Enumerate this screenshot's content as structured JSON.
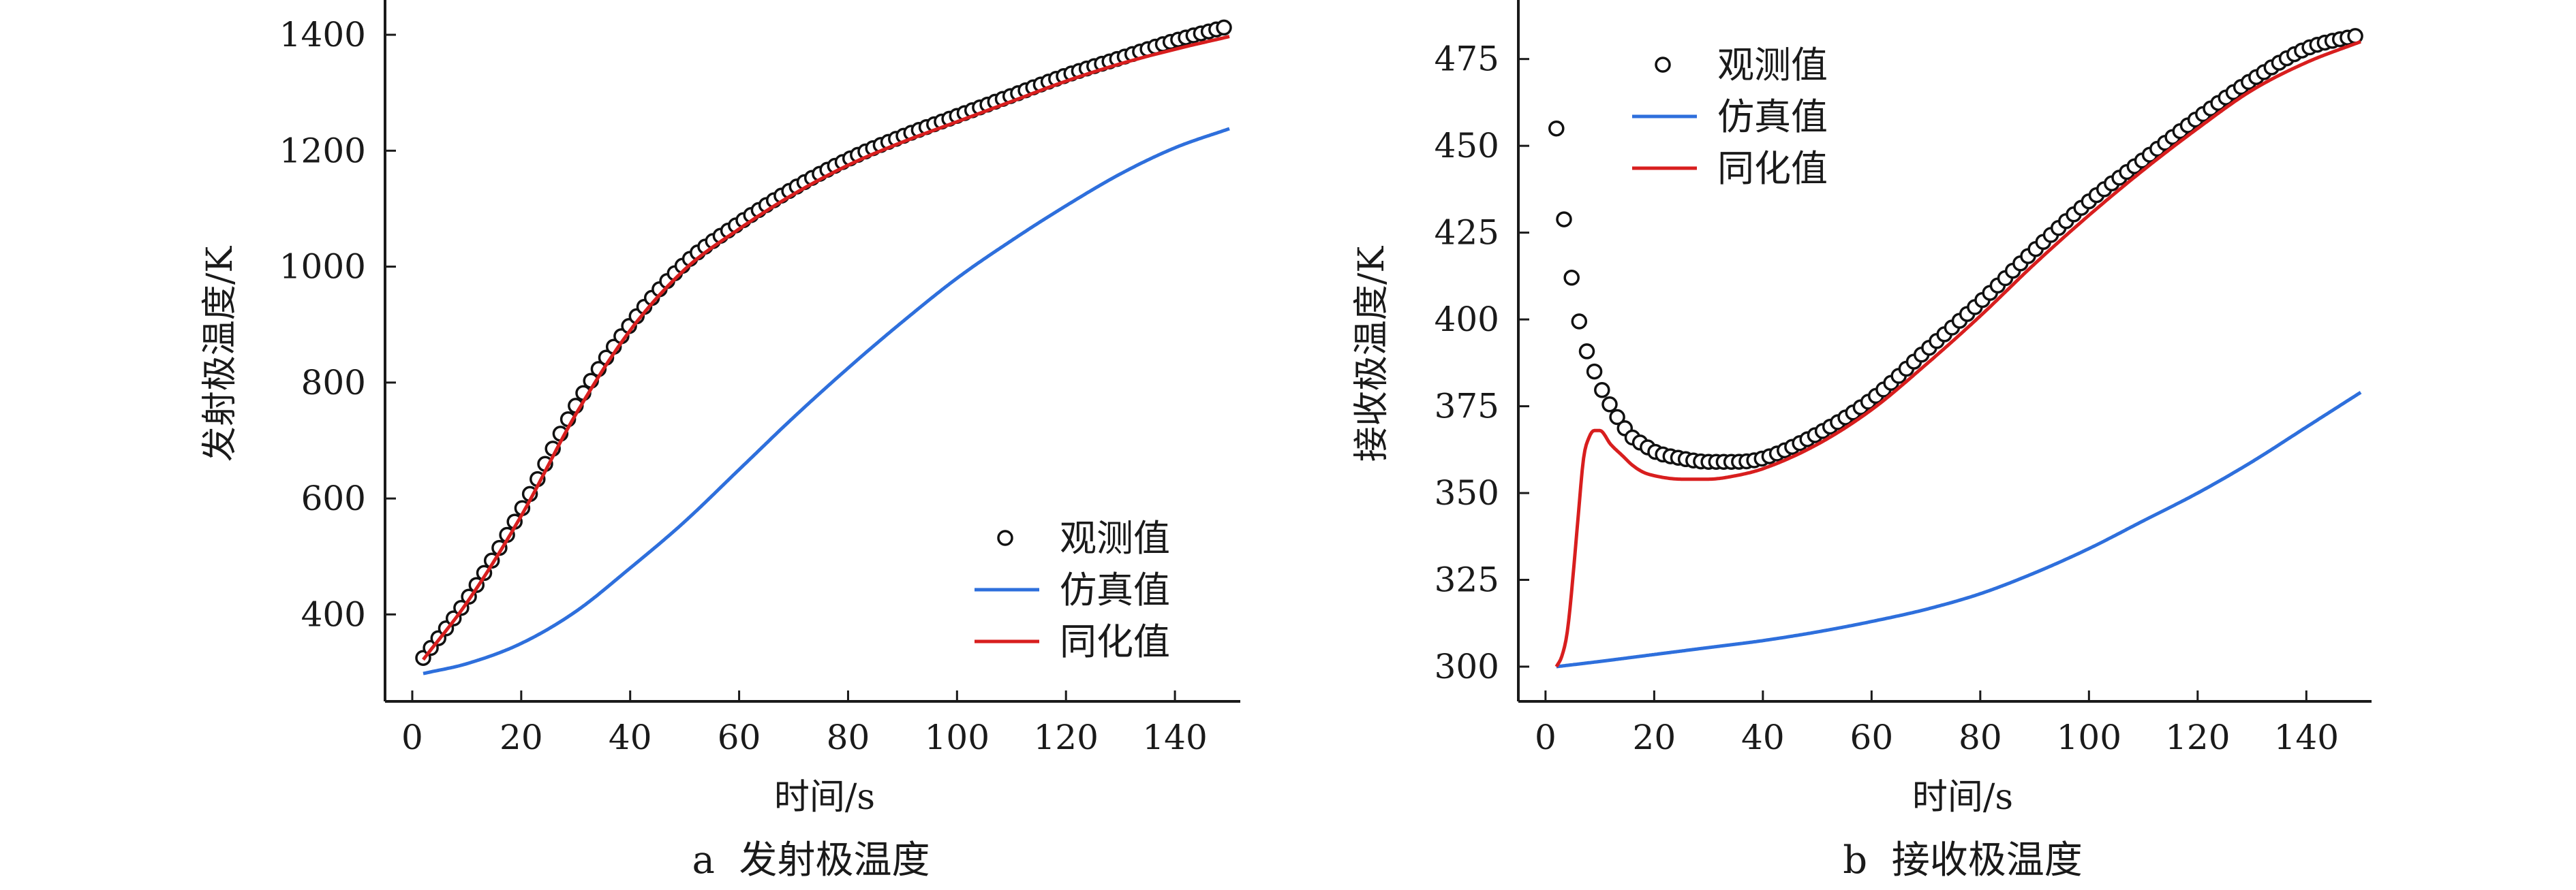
{
  "chart_data": [
    {
      "id": "a",
      "type": "line",
      "caption": "a  发射极温度",
      "xlabel": "时间/s",
      "ylabel": "发射极温度/K",
      "xlim": [
        -5,
        152
      ],
      "ylim": [
        250,
        1460
      ],
      "xticks": [
        0,
        20,
        40,
        60,
        80,
        100,
        120,
        140
      ],
      "yticks": [
        400,
        600,
        800,
        1000,
        1200,
        1400
      ],
      "grid": false,
      "legend_position": "bottom-right",
      "legend": [
        {
          "name": "观测值",
          "kind": "marker",
          "color": "#111111"
        },
        {
          "name": "仿真值",
          "kind": "line",
          "color": "#2e6fdc"
        },
        {
          "name": "同化值",
          "kind": "line",
          "color": "#d81e1e"
        }
      ],
      "series": [
        {
          "name": "观测值",
          "style": "markers",
          "color": "#111111",
          "x": [
            2,
            10,
            20,
            30,
            40,
            50,
            60,
            70,
            80,
            90,
            100,
            110,
            120,
            130,
            140,
            150
          ],
          "y": [
            325,
            425,
            580,
            760,
            900,
            1005,
            1075,
            1135,
            1185,
            1225,
            1260,
            1295,
            1330,
            1360,
            1390,
            1415
          ],
          "marker_step": 1.4
        },
        {
          "name": "仿真值",
          "style": "line",
          "color": "#2e6fdc",
          "x": [
            2,
            10,
            20,
            30,
            40,
            50,
            60,
            70,
            80,
            90,
            100,
            110,
            120,
            130,
            140,
            150
          ],
          "y": [
            298,
            315,
            350,
            405,
            480,
            560,
            650,
            740,
            825,
            905,
            980,
            1045,
            1105,
            1160,
            1205,
            1238
          ]
        },
        {
          "name": "同化值",
          "style": "line",
          "color": "#d81e1e",
          "x": [
            2,
            10,
            20,
            30,
            40,
            50,
            60,
            70,
            80,
            90,
            100,
            110,
            120,
            130,
            140,
            150
          ],
          "y": [
            322,
            420,
            570,
            745,
            890,
            995,
            1065,
            1125,
            1175,
            1215,
            1250,
            1285,
            1320,
            1350,
            1375,
            1397
          ]
        }
      ]
    },
    {
      "id": "b",
      "type": "line",
      "caption": "b  接收极温度",
      "xlabel": "时间/s",
      "ylabel": "接收极温度/K",
      "xlim": [
        -5,
        152
      ],
      "ylim": [
        290,
        492
      ],
      "xticks": [
        0,
        20,
        40,
        60,
        80,
        100,
        120,
        140
      ],
      "yticks": [
        300,
        325,
        350,
        375,
        400,
        425,
        450,
        475
      ],
      "grid": false,
      "legend_position": "top-left",
      "legend": [
        {
          "name": "观测值",
          "kind": "marker",
          "color": "#111111"
        },
        {
          "name": "仿真值",
          "kind": "line",
          "color": "#2e6fdc"
        },
        {
          "name": "同化值",
          "kind": "line",
          "color": "#d81e1e"
        }
      ],
      "series": [
        {
          "name": "观测值",
          "style": "markers",
          "color": "#111111",
          "x": [
            2,
            3,
            4,
            5,
            6,
            7,
            8,
            9,
            10,
            12,
            14,
            16,
            18,
            20,
            25,
            30,
            35,
            40,
            50,
            60,
            70,
            80,
            90,
            100,
            110,
            120,
            130,
            140,
            150
          ],
          "y": [
            455,
            435,
            421,
            410,
            401,
            394,
            389,
            385,
            381,
            375,
            370,
            366,
            364,
            362,
            360,
            359,
            359,
            360,
            367,
            377,
            391,
            405,
            420,
            434,
            446,
            458,
            469,
            478,
            482
          ],
          "marker_step": 1.4
        },
        {
          "name": "仿真值",
          "style": "line",
          "color": "#2e6fdc",
          "x": [
            2,
            10,
            20,
            30,
            40,
            50,
            60,
            70,
            80,
            90,
            100,
            110,
            120,
            130,
            140,
            150
          ],
          "y": [
            300,
            301.5,
            303.5,
            305.5,
            307.5,
            310,
            313,
            316.5,
            321,
            327,
            334,
            342,
            350,
            359,
            369,
            379
          ]
        },
        {
          "name": "同化值",
          "style": "line",
          "color": "#d81e1e",
          "x": [
            2,
            3,
            4,
            5,
            6,
            7,
            8,
            9,
            10,
            12,
            14,
            16,
            18,
            20,
            25,
            30,
            35,
            40,
            50,
            60,
            70,
            80,
            90,
            100,
            110,
            120,
            130,
            140,
            150
          ],
          "y": [
            300,
            303,
            310,
            325,
            343,
            360,
            366,
            368,
            368,
            364,
            361,
            358,
            356,
            355,
            354,
            354,
            355,
            357,
            364,
            374,
            387,
            401,
            416,
            430,
            443,
            455,
            466,
            474,
            480
          ]
        }
      ]
    }
  ]
}
